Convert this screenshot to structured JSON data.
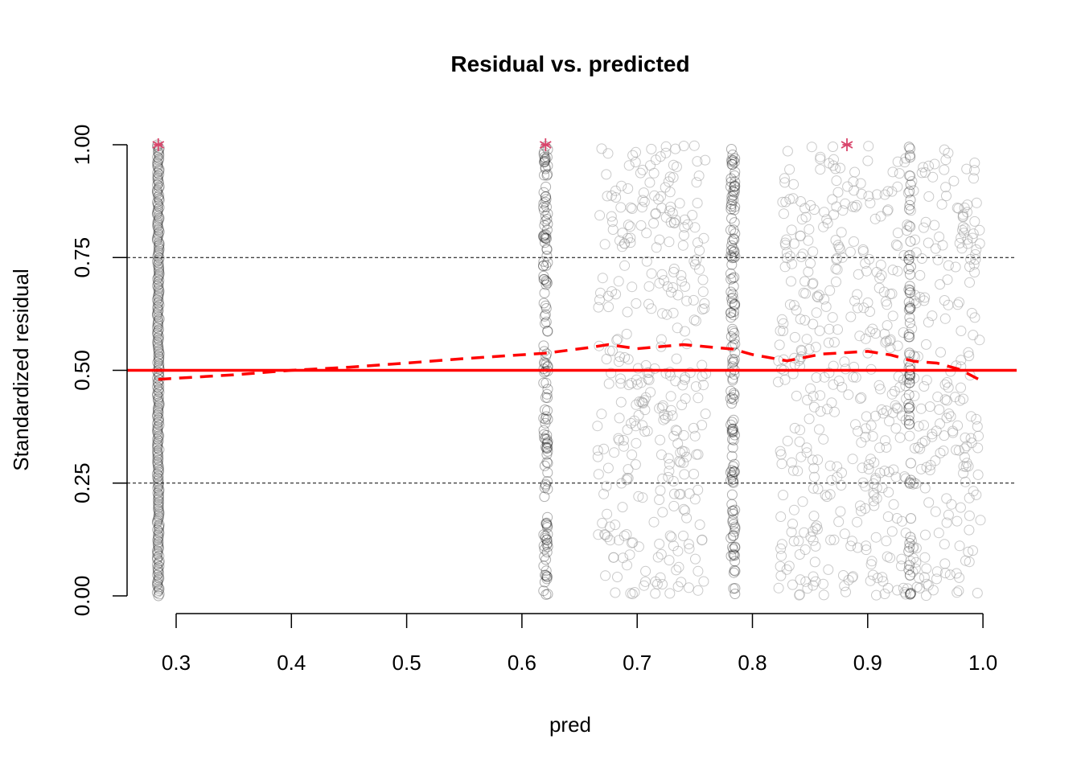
{
  "chart_data": {
    "type": "scatter",
    "title": "Residual vs. predicted",
    "xlabel": "pred",
    "ylabel": "Standardized residual",
    "xlim": [
      0.26,
      1.03
    ],
    "ylim": [
      0.0,
      1.0
    ],
    "x_ticks": [
      0.3,
      0.4,
      0.5,
      0.6,
      0.7,
      0.8,
      0.9,
      1.0
    ],
    "x_tick_labels": [
      "0.3",
      "0.4",
      "0.5",
      "0.6",
      "0.7",
      "0.8",
      "0.9",
      "1.0"
    ],
    "y_ticks": [
      0.0,
      0.25,
      0.5,
      0.75,
      1.0
    ],
    "y_tick_labels": [
      "0.00",
      "0.25",
      "0.50",
      "0.75",
      "1.00"
    ],
    "grid": "off",
    "reference_lines": {
      "dashed_thin_y": [
        0.25,
        0.75
      ],
      "solid_red_y": 0.5
    },
    "point_columns": [
      {
        "x_center": 0.2845,
        "spread": 0.001,
        "count": 260
      },
      {
        "x_center": 0.6205,
        "spread": 0.002,
        "count": 150
      },
      {
        "x_center": 0.783,
        "spread": 0.002,
        "count": 150
      },
      {
        "x_center": 0.9365,
        "spread": 0.001,
        "count": 70
      }
    ],
    "jitter_bands": [
      {
        "x_range": [
          0.665,
          0.76
        ],
        "count": 340
      },
      {
        "x_range": [
          0.822,
          0.998
        ],
        "count": 620
      }
    ],
    "outliers": [
      {
        "x": 0.2845,
        "y": 1.0
      },
      {
        "x": 0.6205,
        "y": 1.0
      },
      {
        "x": 0.882,
        "y": 1.0
      }
    ],
    "smooth_line": {
      "x": [
        0.2845,
        0.35,
        0.4,
        0.45,
        0.5,
        0.55,
        0.6205,
        0.66,
        0.675,
        0.7,
        0.74,
        0.783,
        0.8,
        0.83,
        0.86,
        0.9,
        0.92,
        0.94,
        0.96,
        0.98,
        1.0
      ],
      "y": [
        0.48,
        0.49,
        0.5,
        0.507,
        0.516,
        0.526,
        0.538,
        0.551,
        0.557,
        0.548,
        0.557,
        0.547,
        0.535,
        0.521,
        0.536,
        0.542,
        0.534,
        0.52,
        0.516,
        0.502,
        0.475
      ]
    },
    "colors": {
      "points": "#9e9e9e",
      "points_dense": "#1a1a1a",
      "outlier": "#d9456b",
      "smooth": "#ff0000",
      "reference": "#ff0000",
      "dashed": "#000000"
    }
  }
}
